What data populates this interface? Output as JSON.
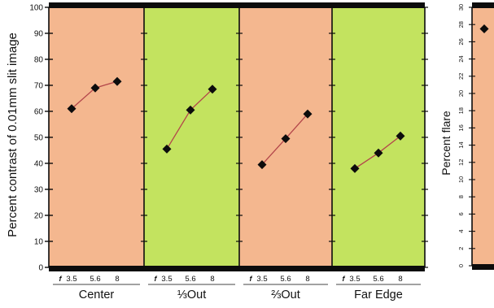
{
  "chart_data": [
    {
      "type": "line",
      "ylabel": "Percent contrast of 0.01mm slit image",
      "ylim": [
        0,
        100
      ],
      "yticks": [
        0,
        10,
        20,
        30,
        40,
        50,
        60,
        70,
        80,
        90,
        100
      ],
      "x_prefix": "f",
      "x": [
        "3.5",
        "5.6",
        "8"
      ],
      "series": [
        {
          "name": "Center",
          "values": [
            61,
            69,
            71.5
          ],
          "background": "#f4b78f"
        },
        {
          "name": "⅓Out",
          "values": [
            45.5,
            60.5,
            68.5
          ],
          "background": "#c3e35f"
        },
        {
          "name": "⅔Out",
          "values": [
            39.5,
            49.5,
            59
          ],
          "background": "#f4b78f"
        },
        {
          "name": "Far Edge",
          "values": [
            38,
            44,
            50.5
          ],
          "background": "#c3e35f"
        }
      ],
      "grid": false
    },
    {
      "type": "scatter",
      "ylabel": "Percent flare",
      "ylim": [
        0,
        30
      ],
      "yticks": [
        0,
        2,
        4,
        6,
        8,
        10,
        12,
        14,
        16,
        18,
        20,
        22,
        24,
        26,
        28,
        30
      ],
      "values": [
        27.5
      ],
      "background": "#f4b78f"
    }
  ],
  "colors": {
    "salmon": "#f4b78f",
    "green": "#c3e35f",
    "line": "#b3464a",
    "marker": "#0c0c0c",
    "frame": "#0c0c0c"
  }
}
